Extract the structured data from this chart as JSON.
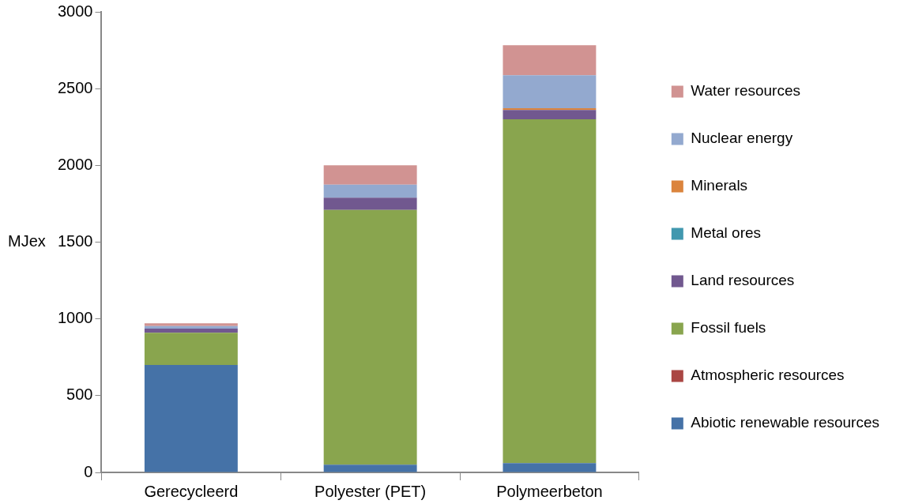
{
  "chart_data": {
    "type": "bar",
    "stacked": true,
    "ylabel": "MJex",
    "categories": [
      "Gerecycleerd",
      "Polyester (PET)",
      "Polymeerbeton"
    ],
    "series": [
      {
        "name": "Abiotic renewable resources",
        "color": "#4572a7",
        "values": [
          700,
          50,
          60
        ]
      },
      {
        "name": "Atmospheric resources",
        "color": "#aa4643",
        "values": [
          0,
          0,
          0
        ]
      },
      {
        "name": "Fossil fuels",
        "color": "#89a54e",
        "values": [
          210,
          1660,
          2240
        ]
      },
      {
        "name": "Land resources",
        "color": "#71588f",
        "values": [
          27,
          80,
          60
        ]
      },
      {
        "name": "Metal ores",
        "color": "#4198af",
        "values": [
          0,
          0,
          0
        ]
      },
      {
        "name": "Minerals",
        "color": "#db843d",
        "values": [
          0,
          0,
          12
        ]
      },
      {
        "name": "Nuclear energy",
        "color": "#93a9cf",
        "values": [
          16,
          85,
          215
        ]
      },
      {
        "name": "Water resources",
        "color": "#d19392",
        "values": [
          18,
          125,
          195
        ]
      }
    ],
    "ylim": [
      0,
      3000
    ],
    "yticks": [
      0,
      500,
      1000,
      1500,
      2000,
      2500,
      3000
    ],
    "grid": false,
    "legend": "right"
  }
}
